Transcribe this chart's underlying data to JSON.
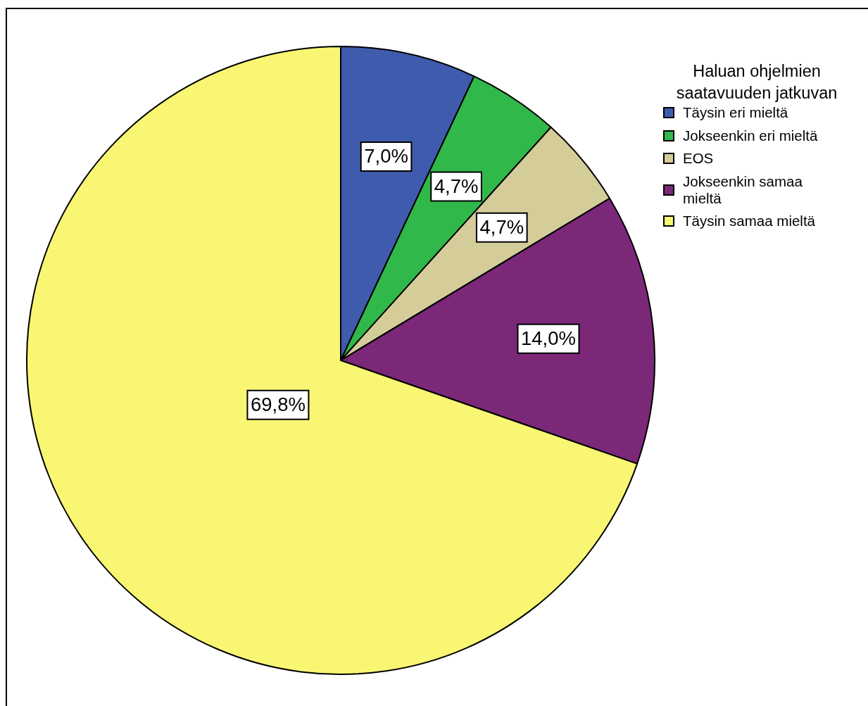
{
  "chart_data": {
    "type": "pie",
    "legend_title": "Haluan ohjelmien saatavuuden jatkuvan",
    "categories": [
      "Täysin eri mieltä",
      "Jokseenkin eri mieltä",
      "EOS",
      "Jokseenkin samaa mieltä",
      "Täysin samaa mieltä"
    ],
    "values": [
      7.0,
      4.7,
      4.7,
      14.0,
      69.8
    ],
    "colors": [
      "#3f5bad",
      "#31b84a",
      "#d4cd9a",
      "#7b2879",
      "#f9f673"
    ],
    "value_labels": [
      "7,0%",
      "4,7%",
      "4,7%",
      "14,0%",
      "69,8%"
    ],
    "legend": "top right"
  }
}
